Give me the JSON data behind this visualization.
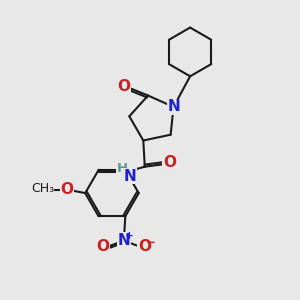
{
  "bg_color": "#e8e8e8",
  "bond_color": "#1a1a1a",
  "N_color": "#2020cc",
  "O_color": "#cc2020",
  "H_color": "#5a9a8a",
  "bond_width": 1.5,
  "figsize": [
    3.0,
    3.0
  ],
  "dpi": 100,
  "xlim": [
    0,
    10
  ],
  "ylim": [
    0,
    10
  ]
}
